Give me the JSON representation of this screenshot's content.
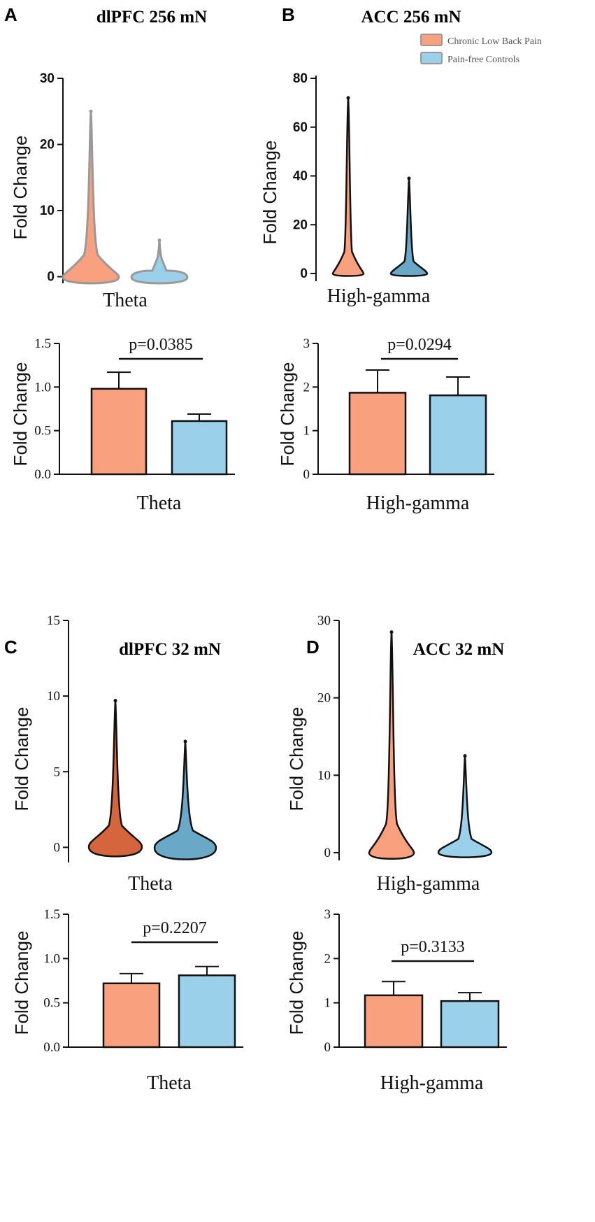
{
  "colors": {
    "clbp": "#f9a07f",
    "hc": "#9bd0ea",
    "clbp_dark": "#d4653c",
    "hc_dark": "#6aa8c8",
    "gray": "#999999",
    "black": "#111111"
  },
  "legend": {
    "items": [
      {
        "label": "Chronic Low Back Pain",
        "color": "#f9a07f"
      },
      {
        "label": "Pain-free Controls",
        "color": "#9bd0ea"
      }
    ]
  },
  "panels": {
    "A": {
      "letter": "A",
      "title": "dlPFC 256 mN"
    },
    "B": {
      "letter": "B",
      "title": "ACC 256 mN"
    },
    "C": {
      "letter": "C",
      "title": "dlPFC 32 mN"
    },
    "D": {
      "letter": "D",
      "title": "ACC 32 mN"
    }
  },
  "chart_data": [
    {
      "id": "A-violin",
      "panel": "A",
      "type": "violin",
      "title": "dlPFC 256 mN",
      "xlabel": "Theta",
      "ylabel": "Fold Change",
      "ylim": [
        -1,
        30
      ],
      "yticks": [
        0,
        10,
        20,
        30
      ],
      "series": [
        {
          "name": "Chronic Low Back Pain",
          "min": -1,
          "max": 25
        },
        {
          "name": "Pain-free Controls",
          "min": -1,
          "max": 5.5
        }
      ]
    },
    {
      "id": "A-bar",
      "panel": "A",
      "type": "bar",
      "xlabel": "Theta",
      "ylabel": "Fold Change",
      "ylim": [
        0,
        1.5
      ],
      "yticks": [
        "0.0",
        "0.5",
        "1.0",
        "1.5"
      ],
      "categories": [
        "Chronic Low Back Pain",
        "Pain-free Controls"
      ],
      "values": [
        0.98,
        0.61
      ],
      "errors": [
        0.19,
        0.08
      ],
      "pvalue": "p=0.0385"
    },
    {
      "id": "B-violin",
      "panel": "B",
      "type": "violin",
      "title": "ACC 256 mN",
      "xlabel": "High-gamma",
      "ylabel": "Fold Change",
      "ylim": [
        -2,
        80
      ],
      "yticks": [
        0,
        20,
        40,
        60,
        80
      ],
      "series": [
        {
          "name": "Chronic Low Back Pain",
          "min": -1,
          "max": 72
        },
        {
          "name": "Pain-free Controls",
          "min": -1,
          "max": 39
        }
      ]
    },
    {
      "id": "B-bar",
      "panel": "B",
      "type": "bar",
      "xlabel": "High-gamma",
      "ylabel": "Fold Change",
      "ylim": [
        0,
        3
      ],
      "yticks": [
        "0",
        "1",
        "2",
        "3"
      ],
      "categories": [
        "Chronic Low Back Pain",
        "Pain-free Controls"
      ],
      "values": [
        1.87,
        1.81
      ],
      "errors": [
        0.52,
        0.42
      ],
      "pvalue": "p=0.0294"
    },
    {
      "id": "C-violin",
      "panel": "C",
      "type": "violin",
      "title": "dlPFC 32 mN",
      "xlabel": "Theta",
      "ylabel": "Fold Change",
      "ylim": [
        -1,
        15
      ],
      "yticks": [
        0,
        5,
        10,
        15
      ],
      "series": [
        {
          "name": "Chronic Low Back Pain",
          "min": -0.6,
          "max": 9.7
        },
        {
          "name": "Pain-free Controls",
          "min": -0.8,
          "max": 7.0
        }
      ]
    },
    {
      "id": "C-bar",
      "panel": "C",
      "type": "bar",
      "xlabel": "Theta",
      "ylabel": "Fold Change",
      "ylim": [
        0,
        1.5
      ],
      "yticks": [
        "0.0",
        "0.5",
        "1.0",
        "1.5"
      ],
      "categories": [
        "Chronic Low Back Pain",
        "Pain-free Controls"
      ],
      "values": [
        0.72,
        0.81
      ],
      "errors": [
        0.11,
        0.1
      ],
      "pvalue": "p=0.2207"
    },
    {
      "id": "D-violin",
      "panel": "D",
      "type": "violin",
      "title": "ACC 32 mN",
      "xlabel": "High-gamma",
      "ylabel": "Fold Change",
      "ylim": [
        -1,
        30
      ],
      "yticks": [
        0,
        10,
        20,
        30
      ],
      "series": [
        {
          "name": "Chronic Low Back Pain",
          "min": -0.8,
          "max": 28.5
        },
        {
          "name": "Pain-free Controls",
          "min": -0.6,
          "max": 12.5
        }
      ]
    },
    {
      "id": "D-bar",
      "panel": "D",
      "type": "bar",
      "xlabel": "High-gamma",
      "ylabel": "Fold Change",
      "ylim": [
        0,
        3
      ],
      "yticks": [
        "0",
        "1",
        "2",
        "3"
      ],
      "categories": [
        "Chronic Low Back Pain",
        "Pain-free Controls"
      ],
      "values": [
        1.17,
        1.04
      ],
      "errors": [
        0.31,
        0.19
      ],
      "pvalue": "p=0.3133"
    }
  ]
}
